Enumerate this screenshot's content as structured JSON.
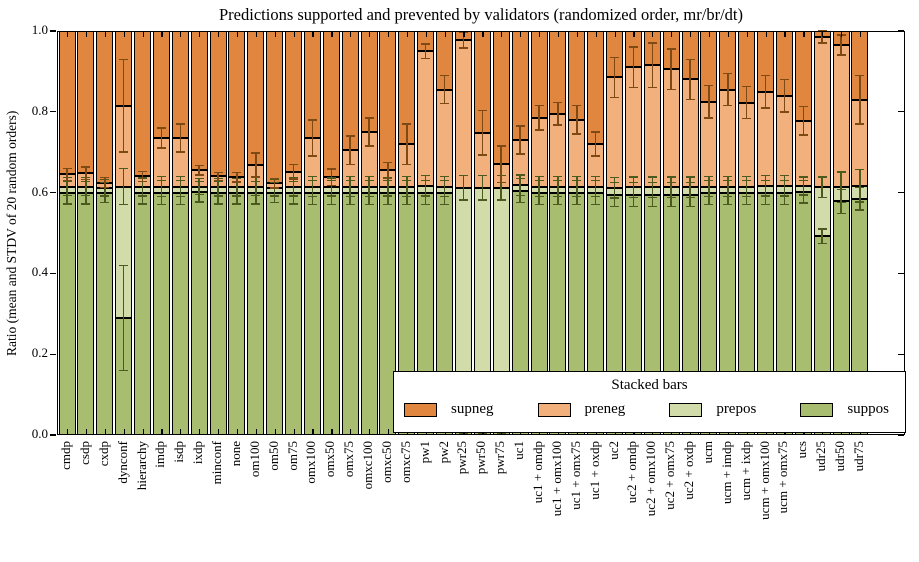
{
  "figure": {
    "title": "Predictions supported and prevented by validators (randomized order, mr/br/dt)",
    "ylabel": "Ratio (mean and STDV of 20 random orders)",
    "ytick_labels": [
      "0.0",
      "0.2",
      "0.4",
      "0.6",
      "0.8",
      "1.0"
    ]
  },
  "legend": {
    "title": "Stacked bars",
    "entries": [
      {
        "label": "supneg",
        "color_key": "supneg"
      },
      {
        "label": "preneg",
        "color_key": "preneg"
      },
      {
        "label": "prepos",
        "color_key": "prepos"
      },
      {
        "label": "suppos",
        "color_key": "suppos"
      }
    ]
  },
  "colors": {
    "supneg": "#e0863e",
    "preneg": "#f2b17c",
    "prepos": "#d2dcab",
    "suppos": "#a9bd70",
    "error_on_orange": "#7d4a16",
    "error_on_green": "#4c5a20",
    "bar_border": "#000000"
  },
  "chart_data": {
    "type": "bar",
    "stacked": true,
    "title": "Predictions supported and prevented by validators (randomized order, mr/br/dt)",
    "xlabel": "",
    "ylabel": "Ratio (mean and STDV of 20 random orders)",
    "ylim": [
      0,
      1
    ],
    "yticks": [
      0,
      0.2,
      0.4,
      0.6,
      0.8,
      1.0
    ],
    "grid": false,
    "legend_position": "lower right",
    "stack_order_bottom_to_top": [
      "suppos",
      "prepos",
      "preneg",
      "supneg"
    ],
    "note": "Values are cumulative tops of each stacked segment (ratio 0-1); supneg always extends to 1.0. err_* values are +/- half-lengths of the error bars drawn at each segment boundary.",
    "bars": [
      {
        "label": "cmdp",
        "suppos_top": 0.6,
        "prepos_top": 0.615,
        "preneg_top": 0.645,
        "err_suppos": 0.028,
        "err_prepos": 0.022,
        "err_preneg": 0.015
      },
      {
        "label": "csdp",
        "suppos_top": 0.6,
        "prepos_top": 0.615,
        "preneg_top": 0.648,
        "err_suppos": 0.028,
        "err_prepos": 0.022,
        "err_preneg": 0.015
      },
      {
        "label": "cxdp",
        "suppos_top": 0.6,
        "prepos_top": 0.612,
        "preneg_top": 0.625,
        "err_suppos": 0.025,
        "err_prepos": 0.02,
        "err_preneg": 0.012
      },
      {
        "label": "dynconf",
        "suppos_top": 0.29,
        "prepos_top": 0.615,
        "preneg_top": 0.815,
        "err_suppos": 0.13,
        "err_prepos": 0.045,
        "err_preneg": 0.115
      },
      {
        "label": "hierarchy",
        "suppos_top": 0.6,
        "prepos_top": 0.614,
        "preneg_top": 0.64,
        "err_suppos": 0.028,
        "err_prepos": 0.022,
        "err_preneg": 0.012
      },
      {
        "label": "imdp",
        "suppos_top": 0.6,
        "prepos_top": 0.615,
        "preneg_top": 0.735,
        "err_suppos": 0.03,
        "err_prepos": 0.025,
        "err_preneg": 0.025
      },
      {
        "label": "isdp",
        "suppos_top": 0.6,
        "prepos_top": 0.615,
        "preneg_top": 0.735,
        "err_suppos": 0.03,
        "err_prepos": 0.025,
        "err_preneg": 0.035
      },
      {
        "label": "ixdp",
        "suppos_top": 0.602,
        "prepos_top": 0.615,
        "preneg_top": 0.655,
        "err_suppos": 0.025,
        "err_prepos": 0.02,
        "err_preneg": 0.012
      },
      {
        "label": "minconf",
        "suppos_top": 0.6,
        "prepos_top": 0.613,
        "preneg_top": 0.64,
        "err_suppos": 0.028,
        "err_prepos": 0.022,
        "err_preneg": 0.01
      },
      {
        "label": "none",
        "suppos_top": 0.6,
        "prepos_top": 0.613,
        "preneg_top": 0.638,
        "err_suppos": 0.028,
        "err_prepos": 0.022,
        "err_preneg": 0.012
      },
      {
        "label": "om100",
        "suppos_top": 0.6,
        "prepos_top": 0.615,
        "preneg_top": 0.668,
        "err_suppos": 0.028,
        "err_prepos": 0.022,
        "err_preneg": 0.03
      },
      {
        "label": "om50",
        "suppos_top": 0.6,
        "prepos_top": 0.612,
        "preneg_top": 0.623,
        "err_suppos": 0.025,
        "err_prepos": 0.02,
        "err_preneg": 0.012
      },
      {
        "label": "om75",
        "suppos_top": 0.6,
        "prepos_top": 0.614,
        "preneg_top": 0.652,
        "err_suppos": 0.028,
        "err_prepos": 0.022,
        "err_preneg": 0.018
      },
      {
        "label": "omx100",
        "suppos_top": 0.6,
        "prepos_top": 0.615,
        "preneg_top": 0.735,
        "err_suppos": 0.03,
        "err_prepos": 0.025,
        "err_preneg": 0.045
      },
      {
        "label": "omx50",
        "suppos_top": 0.6,
        "prepos_top": 0.614,
        "preneg_top": 0.638,
        "err_suppos": 0.03,
        "err_prepos": 0.022,
        "err_preneg": 0.02
      },
      {
        "label": "omx75",
        "suppos_top": 0.6,
        "prepos_top": 0.615,
        "preneg_top": 0.705,
        "err_suppos": 0.03,
        "err_prepos": 0.025,
        "err_preneg": 0.035
      },
      {
        "label": "omxc100",
        "suppos_top": 0.6,
        "prepos_top": 0.615,
        "preneg_top": 0.75,
        "err_suppos": 0.03,
        "err_prepos": 0.025,
        "err_preneg": 0.035
      },
      {
        "label": "omxc50",
        "suppos_top": 0.6,
        "prepos_top": 0.614,
        "preneg_top": 0.655,
        "err_suppos": 0.03,
        "err_prepos": 0.022,
        "err_preneg": 0.02
      },
      {
        "label": "omxc75",
        "suppos_top": 0.6,
        "prepos_top": 0.615,
        "preneg_top": 0.72,
        "err_suppos": 0.03,
        "err_prepos": 0.025,
        "err_preneg": 0.05
      },
      {
        "label": "pw1",
        "suppos_top": 0.6,
        "prepos_top": 0.617,
        "preneg_top": 0.95,
        "err_suppos": 0.03,
        "err_prepos": 0.025,
        "err_preneg": 0.018
      },
      {
        "label": "pw2",
        "suppos_top": 0.6,
        "prepos_top": 0.615,
        "preneg_top": 0.855,
        "err_suppos": 0.03,
        "err_prepos": 0.025,
        "err_preneg": 0.035
      },
      {
        "label": "pwr25",
        "suppos_top": 0.015,
        "prepos_top": 0.612,
        "preneg_top": 0.978,
        "err_suppos": 0.012,
        "err_prepos": 0.03,
        "err_preneg": 0.02
      },
      {
        "label": "pwr50",
        "suppos_top": 0.018,
        "prepos_top": 0.612,
        "preneg_top": 0.748,
        "err_suppos": 0.015,
        "err_prepos": 0.03,
        "err_preneg": 0.055
      },
      {
        "label": "pwr75",
        "suppos_top": 0.012,
        "prepos_top": 0.612,
        "preneg_top": 0.67,
        "err_suppos": 0.01,
        "err_prepos": 0.03,
        "err_preneg": 0.045
      },
      {
        "label": "uc1",
        "suppos_top": 0.605,
        "prepos_top": 0.618,
        "preneg_top": 0.73,
        "err_suppos": 0.03,
        "err_prepos": 0.025,
        "err_preneg": 0.035
      },
      {
        "label": "uc1 + omdp",
        "suppos_top": 0.6,
        "prepos_top": 0.615,
        "preneg_top": 0.785,
        "err_suppos": 0.03,
        "err_prepos": 0.025,
        "err_preneg": 0.03
      },
      {
        "label": "uc1 + omx100",
        "suppos_top": 0.6,
        "prepos_top": 0.615,
        "preneg_top": 0.795,
        "err_suppos": 0.03,
        "err_prepos": 0.025,
        "err_preneg": 0.028
      },
      {
        "label": "uc1 + omx75",
        "suppos_top": 0.6,
        "prepos_top": 0.615,
        "preneg_top": 0.78,
        "err_suppos": 0.03,
        "err_prepos": 0.025,
        "err_preneg": 0.035
      },
      {
        "label": "uc1 + oxdp",
        "suppos_top": 0.6,
        "prepos_top": 0.615,
        "preneg_top": 0.72,
        "err_suppos": 0.03,
        "err_prepos": 0.025,
        "err_preneg": 0.03
      },
      {
        "label": "uc2",
        "suppos_top": 0.595,
        "prepos_top": 0.612,
        "preneg_top": 0.885,
        "err_suppos": 0.03,
        "err_prepos": 0.025,
        "err_preneg": 0.05
      },
      {
        "label": "uc2 + omdp",
        "suppos_top": 0.595,
        "prepos_top": 0.613,
        "preneg_top": 0.91,
        "err_suppos": 0.03,
        "err_prepos": 0.025,
        "err_preneg": 0.05
      },
      {
        "label": "uc2 + omx100",
        "suppos_top": 0.595,
        "prepos_top": 0.613,
        "preneg_top": 0.915,
        "err_suppos": 0.03,
        "err_prepos": 0.025,
        "err_preneg": 0.055
      },
      {
        "label": "uc2 + omx75",
        "suppos_top": 0.595,
        "prepos_top": 0.613,
        "preneg_top": 0.905,
        "err_suppos": 0.03,
        "err_prepos": 0.025,
        "err_preneg": 0.05
      },
      {
        "label": "uc2 + oxdp",
        "suppos_top": 0.595,
        "prepos_top": 0.613,
        "preneg_top": 0.88,
        "err_suppos": 0.03,
        "err_prepos": 0.025,
        "err_preneg": 0.05
      },
      {
        "label": "ucm",
        "suppos_top": 0.6,
        "prepos_top": 0.615,
        "preneg_top": 0.825,
        "err_suppos": 0.03,
        "err_prepos": 0.025,
        "err_preneg": 0.04
      },
      {
        "label": "ucm + imdp",
        "suppos_top": 0.6,
        "prepos_top": 0.615,
        "preneg_top": 0.855,
        "err_suppos": 0.03,
        "err_prepos": 0.025,
        "err_preneg": 0.04
      },
      {
        "label": "ucm + ixdp",
        "suppos_top": 0.6,
        "prepos_top": 0.615,
        "preneg_top": 0.823,
        "err_suppos": 0.03,
        "err_prepos": 0.025,
        "err_preneg": 0.04
      },
      {
        "label": "ucm + omx100",
        "suppos_top": 0.6,
        "prepos_top": 0.617,
        "preneg_top": 0.85,
        "err_suppos": 0.03,
        "err_prepos": 0.025,
        "err_preneg": 0.04
      },
      {
        "label": "ucm + omx75",
        "suppos_top": 0.6,
        "prepos_top": 0.617,
        "preneg_top": 0.84,
        "err_suppos": 0.03,
        "err_prepos": 0.025,
        "err_preneg": 0.04
      },
      {
        "label": "ucs",
        "suppos_top": 0.602,
        "prepos_top": 0.616,
        "preneg_top": 0.778,
        "err_suppos": 0.028,
        "err_prepos": 0.022,
        "err_preneg": 0.035
      },
      {
        "label": "udr25",
        "suppos_top": 0.492,
        "prepos_top": 0.613,
        "preneg_top": 0.985,
        "err_suppos": 0.018,
        "err_prepos": 0.025,
        "err_preneg": 0.015
      },
      {
        "label": "udr50",
        "suppos_top": 0.578,
        "prepos_top": 0.613,
        "preneg_top": 0.965,
        "err_suppos": 0.03,
        "err_prepos": 0.038,
        "err_preneg": 0.025
      },
      {
        "label": "udr75",
        "suppos_top": 0.585,
        "prepos_top": 0.617,
        "preneg_top": 0.83,
        "err_suppos": 0.028,
        "err_prepos": 0.04,
        "err_preneg": 0.06
      }
    ]
  }
}
